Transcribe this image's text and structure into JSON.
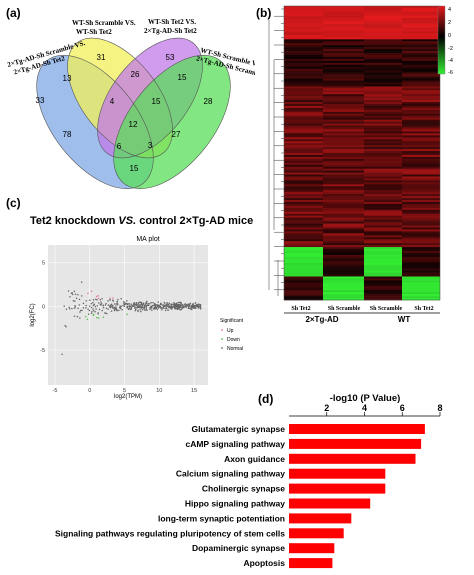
{
  "panels": {
    "a": "(a)",
    "b": "(b)",
    "c": "(c)",
    "d": "(d)"
  },
  "venn": {
    "set_labels": [
      [
        "2×Tg-AD-Sh Scramble VS.",
        "2×Tg-AD-Sh Tet2"
      ],
      [
        "WT-Sh Scramble VS.",
        "WT-Sh Tet2"
      ],
      [
        "WT-Sh Tet2 VS.",
        "2×Tg-AD-Sh Tet2"
      ],
      [
        "WT-Sh Scramble VS.",
        "2×Tg-AD-Sh Scramble"
      ]
    ],
    "colors": [
      "#7fa8e6",
      "#f2f05a",
      "#c27ae8",
      "#58de58"
    ],
    "regions": [
      {
        "id": "A_only",
        "value": "33"
      },
      {
        "id": "B_only",
        "value": "31"
      },
      {
        "id": "C_only",
        "value": "53"
      },
      {
        "id": "D_only",
        "value": "28"
      },
      {
        "id": "AB",
        "value": "13"
      },
      {
        "id": "BC",
        "value": "26"
      },
      {
        "id": "CD",
        "value": "15"
      },
      {
        "id": "ABC",
        "value": "4"
      },
      {
        "id": "BCD",
        "value": "15"
      },
      {
        "id": "AC",
        "value": "78"
      },
      {
        "id": "ABCD",
        "value": "12"
      },
      {
        "id": "BD",
        "value": "27"
      },
      {
        "id": "ACD",
        "value": "6"
      },
      {
        "id": "ABD",
        "value": "3"
      },
      {
        "id": "AD",
        "value": "15"
      }
    ]
  },
  "heatmap": {
    "legend_ticks": [
      "4",
      "2",
      "0",
      "-2",
      "-4",
      "-6"
    ],
    "colors": {
      "high": "#e41a1c",
      "mid": "#000000",
      "low": "#33ee33"
    },
    "column_labels": [
      "Sh Tet2",
      "Sh Scramble",
      "Sh Scramble",
      "Sh Tet2"
    ],
    "group_labels": [
      "2×Tg-AD",
      "WT"
    ]
  },
  "ma_plot": {
    "heading_normal": "Tet2 knockdown ",
    "heading_italic": "VS.",
    "heading_rest": " control 2×Tg-AD mice",
    "title": "MA plot",
    "xlabel": "log2(TPM)",
    "ylabel": "log2(FC)",
    "x_ticks": [
      "-5",
      "0",
      "5",
      "10",
      "15"
    ],
    "y_ticks": [
      "5",
      "0",
      "-5"
    ],
    "xlim": [
      -6,
      17
    ],
    "ylim": [
      -9,
      7
    ],
    "legend_title": "Significant",
    "legend_items": [
      {
        "label": "Up",
        "color": "#e8709a"
      },
      {
        "label": "Down",
        "color": "#56b84a"
      },
      {
        "label": "Normal",
        "color": "#666666"
      }
    ]
  },
  "chart_data": {
    "type": "bar",
    "title": "-log10 (P Value)",
    "xlim": [
      0,
      8
    ],
    "x_ticks": [
      "2",
      "4",
      "6",
      "8"
    ],
    "bar_color": "#ff0000",
    "categories": [
      "Glutamatergic synapse",
      "cAMP signaling pathway",
      "Axon guidance",
      "Calcium signaling pathway",
      "Cholinergic synapse",
      "Hippo signaling pathway",
      "long-term synaptic potentiation",
      "Signaling pathways regulating pluripotency of stem cells",
      "Dopaminergic synapse",
      "Apoptosis"
    ],
    "values": [
      7.2,
      7.0,
      6.7,
      5.1,
      5.1,
      4.3,
      3.3,
      2.9,
      2.4,
      2.3
    ]
  }
}
